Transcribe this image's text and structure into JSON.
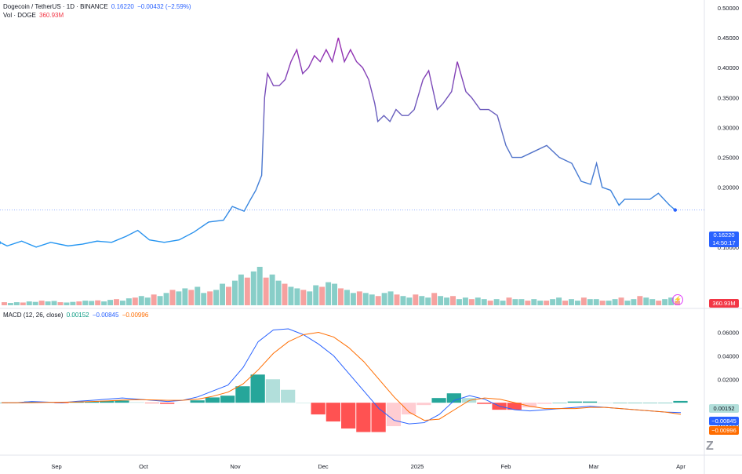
{
  "header": {
    "symbol": "Dogecoin / TetherUS · 1D · BINANCE",
    "last": "0.16220",
    "change": "−0.00432 (−2.59%)",
    "vol_label": "Vol · DOGE",
    "vol_value": "360.93M",
    "macd_label": "MACD (12, 26, close)",
    "macd_hist": "0.00152",
    "macd_line": "−0.00845",
    "macd_signal": "−0.00996"
  },
  "badges": {
    "price": "0.16220",
    "countdown": "14:50:17",
    "volume": "360.93M",
    "macd_hist": "0.00152",
    "macd_line": "−0.00845",
    "macd_signal": "−0.00996"
  },
  "colors": {
    "price_line_start": "#2196f3",
    "price_line_peak": "#9c27b0",
    "vol_up": "#26a69a",
    "vol_down": "#ef5350",
    "macd_line": "#2962ff",
    "signal_line": "#ff6d00",
    "hist_up_strong": "#26a69a",
    "hist_up_weak": "#b2dfdb",
    "hist_down_strong": "#ff5252",
    "hist_down_weak": "#ffcdd2"
  },
  "icons": [
    "lightning-icon",
    "tradingview-logo-icon"
  ],
  "chart_data": [
    {
      "type": "line",
      "title": "Dogecoin / TetherUS · 1D · BINANCE",
      "x_ticks": [
        "Sep",
        "Oct",
        "Nov",
        "Dec",
        "2025",
        "Feb",
        "Mar",
        "Apr"
      ],
      "y_ticks": [
        "0.50000",
        "0.45000",
        "0.40000",
        "0.35000",
        "0.30000",
        "0.25000",
        "0.20000",
        "0.10000"
      ],
      "ylim": [
        0.05,
        0.5
      ],
      "series": [
        {
          "x": [
            "2024-08-01",
            "2024-08-05",
            "2024-08-10",
            "2024-08-15",
            "2024-08-20",
            "2024-08-25",
            "2024-08-30",
            "2024-09-05",
            "2024-09-10",
            "2024-09-15",
            "2024-09-20",
            "2024-09-25",
            "2024-09-29",
            "2024-10-03",
            "2024-10-08",
            "2024-10-13",
            "2024-10-18",
            "2024-10-23",
            "2024-10-28",
            "2024-10-31",
            "2024-11-04",
            "2024-11-06",
            "2024-11-08",
            "2024-11-10",
            "2024-11-11",
            "2024-11-12",
            "2024-11-14",
            "2024-11-16",
            "2024-11-18",
            "2024-11-20",
            "2024-11-22",
            "2024-11-24",
            "2024-11-26",
            "2024-11-28",
            "2024-11-30",
            "2024-12-02",
            "2024-12-04",
            "2024-12-06",
            "2024-12-08",
            "2024-12-10",
            "2024-12-12",
            "2024-12-14",
            "2024-12-16",
            "2024-12-18",
            "2024-12-19",
            "2024-12-21",
            "2024-12-23",
            "2024-12-25",
            "2024-12-27",
            "2024-12-29",
            "2024-12-31",
            "2025-01-03",
            "2025-01-05",
            "2025-01-08",
            "2025-01-10",
            "2025-01-13",
            "2025-01-15",
            "2025-01-18",
            "2025-01-20",
            "2025-01-23",
            "2025-01-26",
            "2025-01-29",
            "2025-02-01",
            "2025-02-03",
            "2025-02-06",
            "2025-02-10",
            "2025-02-14",
            "2025-02-18",
            "2025-02-22",
            "2025-02-25",
            "2025-02-28",
            "2025-03-02",
            "2025-03-04",
            "2025-03-07",
            "2025-03-10",
            "2025-03-12",
            "2025-03-15",
            "2025-03-18",
            "2025-03-21",
            "2025-03-24",
            "2025-03-26",
            "2025-03-28",
            "2025-03-30"
          ],
          "values": [
            0.11,
            0.105,
            0.108,
            0.102,
            0.11,
            0.1,
            0.108,
            0.102,
            0.105,
            0.11,
            0.108,
            0.118,
            0.128,
            0.112,
            0.108,
            0.112,
            0.125,
            0.142,
            0.145,
            0.168,
            0.16,
            0.178,
            0.195,
            0.22,
            0.35,
            0.39,
            0.37,
            0.37,
            0.38,
            0.41,
            0.43,
            0.39,
            0.4,
            0.42,
            0.41,
            0.43,
            0.41,
            0.45,
            0.41,
            0.43,
            0.41,
            0.4,
            0.38,
            0.34,
            0.31,
            0.32,
            0.31,
            0.33,
            0.32,
            0.32,
            0.33,
            0.38,
            0.395,
            0.33,
            0.34,
            0.36,
            0.41,
            0.36,
            0.35,
            0.33,
            0.33,
            0.32,
            0.27,
            0.25,
            0.25,
            0.26,
            0.27,
            0.25,
            0.24,
            0.21,
            0.205,
            0.24,
            0.2,
            0.195,
            0.17,
            0.18,
            0.18,
            0.18,
            0.18,
            0.19,
            0.18,
            0.17,
            0.162
          ]
        }
      ]
    },
    {
      "type": "bar",
      "title": "Vol · DOGE",
      "values": [
        2,
        1.5,
        2,
        1.8,
        2.5,
        2.2,
        3,
        2.5,
        2.8,
        2,
        1.8,
        2.2,
        2.5,
        3,
        2.8,
        3.2,
        2.5,
        3.5,
        4,
        3,
        4.5,
        5,
        6,
        5,
        7,
        6,
        8,
        10,
        9,
        11,
        10,
        12,
        8,
        9,
        10,
        14,
        12,
        16,
        20,
        18,
        22,
        25,
        18,
        20,
        16,
        14,
        12,
        11,
        10,
        9,
        13,
        12,
        15,
        14,
        11,
        10,
        8,
        9,
        8,
        7,
        6,
        8,
        9,
        7,
        6,
        5,
        7,
        6,
        5,
        8,
        6,
        5,
        6,
        4,
        5,
        4,
        5,
        4,
        3,
        4,
        3,
        5,
        4,
        4,
        3,
        4,
        3,
        3,
        4,
        5,
        3,
        4,
        3,
        5,
        4,
        4,
        3,
        3,
        4,
        5,
        3,
        4,
        6,
        5,
        4,
        3,
        4,
        5,
        3
      ],
      "up_down": "mixed"
    },
    {
      "type": "line",
      "title": "MACD (12, 26, close)",
      "y_ticks": [
        "0.06000",
        "0.04000",
        "0.02000",
        "−0.02000"
      ],
      "ylim": [
        -0.03,
        0.065
      ],
      "series": [
        {
          "name": "MACD",
          "values": [
            0,
            0,
            0.001,
            0.0005,
            0,
            0.0012,
            0.002,
            0.003,
            0.004,
            0.003,
            0.002,
            0.001,
            0.002,
            0.005,
            0.01,
            0.015,
            0.03,
            0.052,
            0.062,
            0.063,
            0.058,
            0.05,
            0.04,
            0.025,
            0.01,
            -0.005,
            -0.015,
            -0.018,
            -0.017,
            -0.01,
            0.002,
            0.006,
            0.003,
            -0.003,
            -0.006,
            -0.007,
            -0.006,
            -0.005,
            -0.004,
            -0.003,
            -0.004,
            -0.005,
            -0.006,
            -0.007,
            -0.008,
            -0.0084
          ]
        },
        {
          "name": "Signal",
          "values": [
            0,
            0,
            0,
            0.0003,
            0.0004,
            0.0006,
            0.001,
            0.0015,
            0.0022,
            0.0026,
            0.0024,
            0.002,
            0.0021,
            0.003,
            0.0055,
            0.009,
            0.016,
            0.028,
            0.042,
            0.052,
            0.058,
            0.06,
            0.056,
            0.047,
            0.035,
            0.02,
            0.005,
            -0.008,
            -0.015,
            -0.014,
            -0.006,
            0.002,
            0.004,
            0.003,
            0.0,
            -0.003,
            -0.005,
            -0.005,
            -0.005,
            -0.004,
            -0.004,
            -0.005,
            -0.006,
            -0.007,
            -0.008,
            -0.0099
          ]
        }
      ],
      "histogram": [
        0,
        0,
        0.001,
        0.0002,
        -0.0004,
        0.0006,
        0.001,
        0.0015,
        0.0018,
        0.0004,
        -0.0004,
        -0.001,
        -0.0001,
        0.002,
        0.0045,
        0.006,
        0.014,
        0.024,
        0.02,
        0.011,
        0.0,
        -0.01,
        -0.016,
        -0.022,
        -0.025,
        -0.025,
        -0.02,
        -0.01,
        -0.002,
        0.004,
        0.008,
        0.004,
        -0.001,
        -0.006,
        -0.006,
        -0.004,
        -0.001,
        0.0,
        0.001,
        0.001,
        0.0,
        0.0,
        0.0,
        0.0,
        0.0,
        0.0015
      ]
    }
  ]
}
